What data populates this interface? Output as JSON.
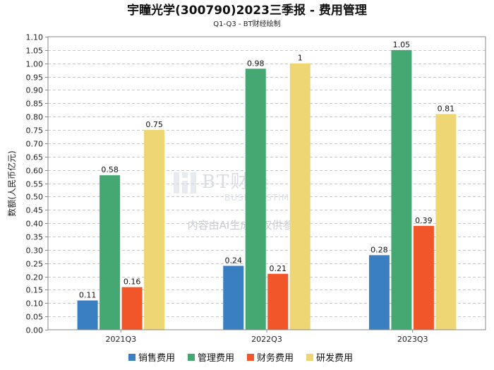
{
  "chart_data": {
    "type": "bar",
    "title": "宇瞳光学(300790)2023三季报 - 费用管理",
    "subtitle": "Q1-Q3 - BT财经绘制",
    "xlabel": "",
    "ylabel": "数额(人民币亿元)",
    "ylim": [
      0,
      1.1
    ],
    "ytick_step": 0.05,
    "categories": [
      "2021Q3",
      "2022Q3",
      "2023Q3"
    ],
    "series": [
      {
        "name": "销售费用",
        "color": "#3a7fc1",
        "values": [
          0.11,
          0.24,
          0.28
        ]
      },
      {
        "name": "管理费用",
        "color": "#45a872",
        "values": [
          0.58,
          0.98,
          1.05
        ]
      },
      {
        "name": "财务费用",
        "color": "#f0562a",
        "values": [
          0.16,
          0.21,
          0.39
        ]
      },
      {
        "name": "研发费用",
        "color": "#efd675",
        "values": [
          0.75,
          1.0,
          0.81
        ]
      }
    ],
    "grid": true,
    "legend": "bottom"
  },
  "watermark": {
    "logo": "BT财经",
    "sub": "BUSINESSTIMES",
    "notice": "内容由AI生成，仅供参考"
  },
  "colors": {
    "grid": "#c8c8c8",
    "axis": "#888888"
  }
}
